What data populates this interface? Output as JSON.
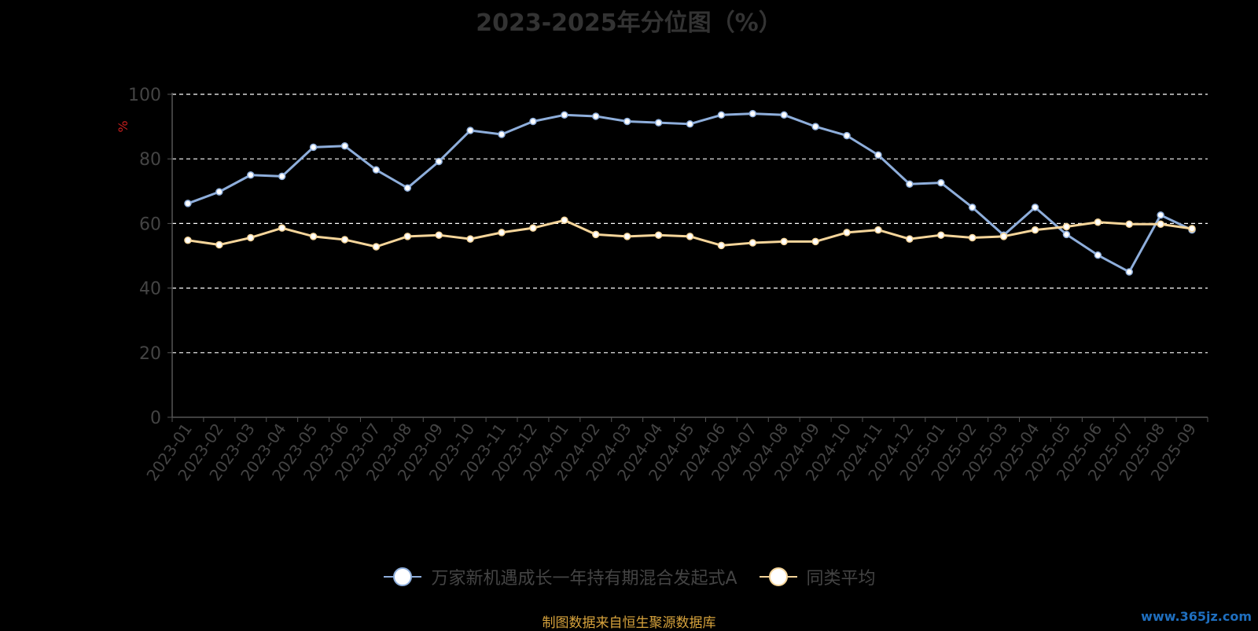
{
  "chart_data": {
    "type": "line",
    "title": "2023-2025年分位图（%）",
    "ylabel": "%",
    "ylim": [
      0,
      100
    ],
    "yticks": [
      0,
      20,
      40,
      60,
      80,
      100
    ],
    "grid": true,
    "legend_position": "bottom",
    "x": [
      "2023-01",
      "2023-02",
      "2023-03",
      "2023-04",
      "2023-05",
      "2023-06",
      "2023-07",
      "2023-08",
      "2023-09",
      "2023-10",
      "2023-11",
      "2023-12",
      "2024-01",
      "2024-02",
      "2024-03",
      "2024-04",
      "2024-05",
      "2024-06",
      "2024-07",
      "2024-08",
      "2024-09",
      "2024-10",
      "2024-11",
      "2024-12",
      "2025-01",
      "2025-02",
      "2025-03",
      "2025-04",
      "2025-05",
      "2025-06",
      "2025-07",
      "2025-08",
      "2025-09"
    ],
    "series": [
      {
        "name": "万家新机遇成长一年持有期混合发起式A",
        "color": "#8eaedb",
        "values": [
          66.2,
          69.8,
          75.0,
          74.6,
          83.6,
          84.0,
          76.6,
          71.0,
          79.2,
          88.8,
          87.6,
          91.6,
          93.6,
          93.2,
          91.6,
          91.2,
          90.8,
          93.6,
          94.0,
          93.6,
          90.0,
          87.2,
          81.2,
          72.2,
          72.6,
          65.0,
          56.4,
          65.0,
          56.6,
          50.2,
          45.0,
          62.6,
          58.0
        ]
      },
      {
        "name": "同类平均",
        "color": "#f5d59a",
        "values": [
          54.8,
          53.4,
          55.6,
          58.6,
          56.0,
          55.0,
          52.8,
          56.0,
          56.4,
          55.2,
          57.2,
          58.6,
          61.0,
          56.6,
          56.0,
          56.4,
          56.0,
          53.2,
          54.0,
          54.4,
          54.4,
          57.2,
          58.0,
          55.2,
          56.4,
          55.6,
          56.0,
          58.0,
          59.0,
          60.4,
          59.8,
          59.8,
          58.4
        ]
      }
    ]
  },
  "footer": {
    "source": "制图数据来自恒生聚源数据库",
    "watermark": "www.365jz.com"
  }
}
